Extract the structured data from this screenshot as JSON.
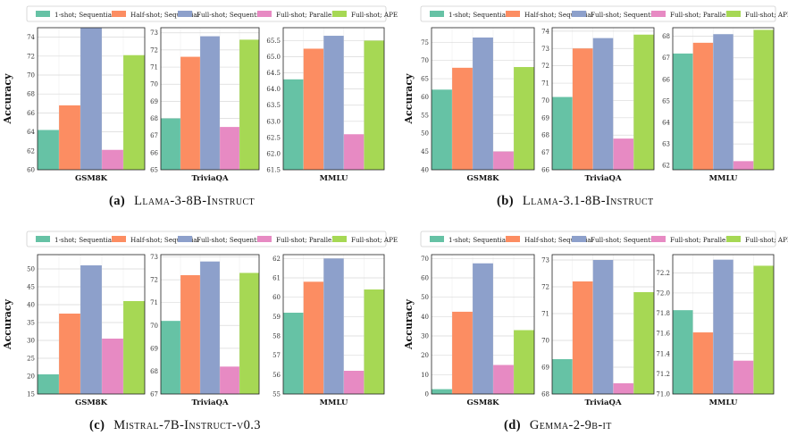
{
  "colors": {
    "series": [
      "#66c2a5",
      "#fc8d62",
      "#8da0cb",
      "#e78ac3",
      "#a6d854"
    ],
    "grid": "#d9d9d9",
    "axis": "#222222"
  },
  "chart_data": [
    {
      "type": "bar",
      "panel_label": "(a)",
      "caption": "Llama-3-8B-Instruct",
      "legend": [
        "1-shot; Sequential",
        "Half-shot; Sequential",
        "Full-shot; Sequential",
        "Full-shot; Parallel",
        "Full-shot; APE"
      ],
      "ylabel": "Accuracy",
      "subplots": [
        {
          "xlabel": "GSM8K",
          "ylim": [
            60,
            75
          ],
          "yticks": [
            "60",
            "62",
            "64",
            "66",
            "68",
            "70",
            "72",
            "74"
          ],
          "values": [
            64.2,
            66.8,
            75.0,
            62.1,
            72.1
          ]
        },
        {
          "xlabel": "TriviaQA",
          "ylim": [
            65,
            73.3
          ],
          "yticks": [
            "65",
            "66",
            "67",
            "68",
            "69",
            "70",
            "71",
            "72",
            "73"
          ],
          "values": [
            68.0,
            71.6,
            72.8,
            67.5,
            72.6
          ]
        },
        {
          "xlabel": "MMLU",
          "ylim": [
            61.5,
            65.9
          ],
          "yticks": [
            "61.5",
            "62.0",
            "62.5",
            "63.0",
            "63.5",
            "64.0",
            "64.5",
            "65.0",
            "65.5"
          ],
          "values": [
            64.3,
            65.25,
            65.65,
            62.6,
            65.5
          ]
        }
      ]
    },
    {
      "type": "bar",
      "panel_label": "(b)",
      "caption": "Llama-3.1-8B-Instruct",
      "legend": [
        "1-shot; Sequential",
        "Half-shot; Sequential",
        "Full-shot; Sequential",
        "Full-shot; Parallel",
        "Full-shot; APE"
      ],
      "ylabel": "Accuracy",
      "subplots": [
        {
          "xlabel": "GSM8K",
          "ylim": [
            40,
            79
          ],
          "yticks": [
            "40",
            "45",
            "50",
            "55",
            "60",
            "65",
            "70",
            "75"
          ],
          "values": [
            62.0,
            68.0,
            76.3,
            45.0,
            68.2
          ]
        },
        {
          "xlabel": "TriviaQA",
          "ylim": [
            66,
            74.2
          ],
          "yticks": [
            "66",
            "67",
            "68",
            "69",
            "70",
            "71",
            "72",
            "73",
            "74"
          ],
          "values": [
            70.2,
            73.0,
            73.6,
            67.8,
            73.8
          ]
        },
        {
          "xlabel": "MMLU",
          "ylim": [
            61.8,
            68.4
          ],
          "yticks": [
            "62",
            "63",
            "64",
            "65",
            "66",
            "67",
            "68"
          ],
          "values": [
            67.2,
            67.7,
            68.1,
            62.2,
            68.3
          ]
        }
      ]
    },
    {
      "type": "bar",
      "panel_label": "(c)",
      "caption": "Mistral-7B-Instruct-v0.3",
      "legend": [
        "1-shot; Sequential",
        "Half-shot; Sequential",
        "Full-shot; Sequential",
        "Full-shot; Parallel",
        "Full-shot; APE"
      ],
      "ylabel": "Accuracy",
      "subplots": [
        {
          "xlabel": "GSM8K",
          "ylim": [
            15,
            54
          ],
          "yticks": [
            "15",
            "20",
            "25",
            "30",
            "35",
            "40",
            "45",
            "50"
          ],
          "values": [
            20.5,
            37.5,
            51.0,
            30.5,
            41.0
          ]
        },
        {
          "xlabel": "TriviaQA",
          "ylim": [
            67,
            73.1
          ],
          "yticks": [
            "67",
            "68",
            "69",
            "70",
            "71",
            "72",
            "73"
          ],
          "values": [
            70.2,
            72.2,
            72.8,
            68.2,
            72.3
          ]
        },
        {
          "xlabel": "MMLU",
          "ylim": [
            55,
            62.2
          ],
          "yticks": [
            "55",
            "56",
            "57",
            "58",
            "59",
            "60",
            "61",
            "62"
          ],
          "values": [
            59.2,
            60.8,
            62.0,
            56.2,
            60.4
          ]
        }
      ]
    },
    {
      "type": "bar",
      "panel_label": "(d)",
      "caption": "Gemma-2-9b-it",
      "legend": [
        "1-shot; Sequential",
        "Half-shot; Sequential",
        "Full-shot; Sequential",
        "Full-shot; Parallel",
        "Full-shot; APE"
      ],
      "ylabel": "Accuracy",
      "subplots": [
        {
          "xlabel": "GSM8K",
          "ylim": [
            0,
            72
          ],
          "yticks": [
            "0",
            "10",
            "20",
            "30",
            "40",
            "50",
            "60",
            "70"
          ],
          "values": [
            2.5,
            42.5,
            67.5,
            15.0,
            33.0
          ]
        },
        {
          "xlabel": "TriviaQA",
          "ylim": [
            68,
            73.2
          ],
          "yticks": [
            "68",
            "69",
            "70",
            "71",
            "72",
            "73"
          ],
          "values": [
            69.3,
            72.2,
            73.0,
            68.4,
            71.8
          ]
        },
        {
          "xlabel": "MMLU",
          "ylim": [
            71.0,
            72.38
          ],
          "yticks": [
            "71.0",
            "71.2",
            "71.4",
            "71.6",
            "71.8",
            "72.0",
            "72.2"
          ],
          "values": [
            71.83,
            71.61,
            72.33,
            71.33,
            72.27
          ]
        }
      ]
    }
  ]
}
